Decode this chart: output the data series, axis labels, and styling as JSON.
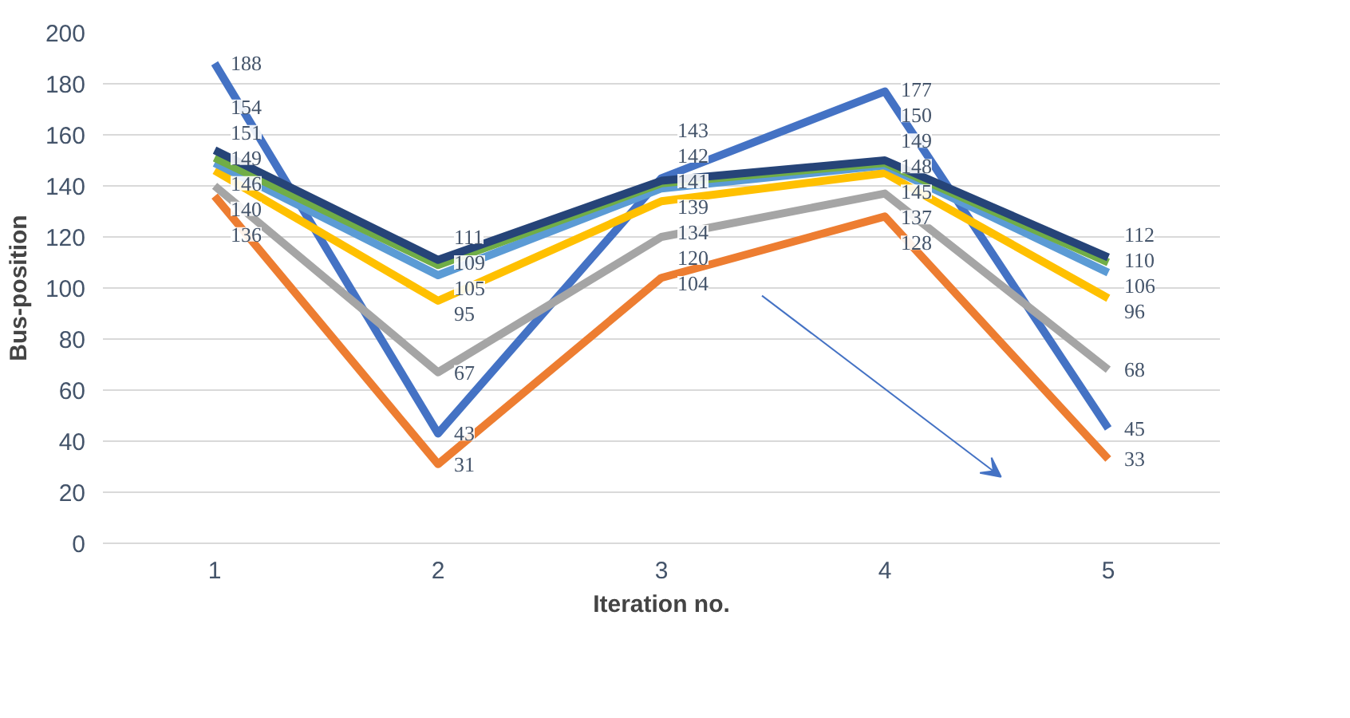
{
  "chart_data": {
    "type": "line",
    "xlabel": "Iteration no.",
    "ylabel": "Bus-position",
    "categories": [
      "1",
      "2",
      "3",
      "4",
      "5"
    ],
    "series": [
      {
        "color": "#4472c4",
        "values": [
          188,
          43,
          143,
          177,
          45
        ]
      },
      {
        "color": "#ed7d31",
        "values": [
          136,
          31,
          104,
          128,
          33
        ]
      },
      {
        "color": "#a5a5a5",
        "values": [
          140,
          67,
          120,
          137,
          68
        ]
      },
      {
        "color": "#ffc000",
        "values": [
          146,
          95,
          134,
          145,
          96
        ]
      },
      {
        "color": "#5b9bd5",
        "values": [
          149,
          105,
          139,
          148,
          106
        ]
      },
      {
        "color": "#70ad47",
        "values": [
          151,
          109,
          141,
          149,
          110
        ]
      },
      {
        "color": "#264478",
        "values": [
          154,
          111,
          142,
          150,
          112
        ]
      }
    ],
    "ylim": [
      0,
      200
    ],
    "yticks": [
      0,
      20,
      40,
      60,
      80,
      100,
      120,
      140,
      160,
      180,
      200
    ],
    "grid": "y",
    "data_labels": true,
    "marker": "none",
    "line_style": "solid"
  }
}
